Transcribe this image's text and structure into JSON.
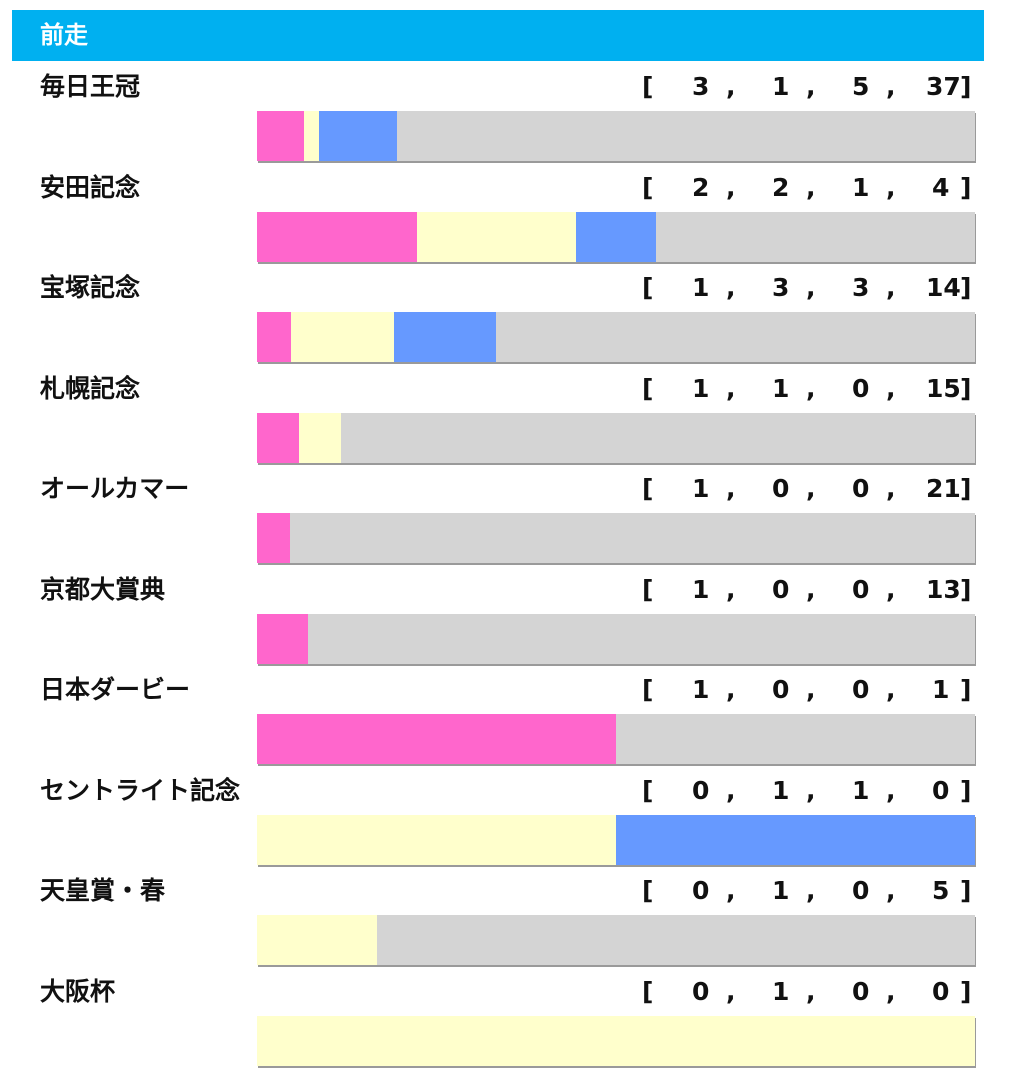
{
  "header": {
    "title": "前走"
  },
  "colors": {
    "first": "#ff66cc",
    "second": "#ffffcc",
    "third": "#6699ff",
    "other": "#d4d4d4",
    "header_bg": "#00b0f0"
  },
  "chart_data": {
    "type": "bar",
    "orientation": "horizontal",
    "stacked": true,
    "normalized": true,
    "categories": [
      "毎日王冠",
      "安田記念",
      "宝塚記念",
      "札幌記念",
      "オールカマー",
      "京都大賞典",
      "日本ダービー",
      "セントライト記念",
      "天皇賞・春",
      "大阪杯"
    ],
    "series": [
      {
        "values": [
          3,
          2,
          1,
          1,
          1,
          1,
          1,
          0,
          0,
          0
        ]
      },
      {
        "values": [
          1,
          2,
          3,
          1,
          0,
          0,
          0,
          1,
          1,
          1
        ]
      },
      {
        "values": [
          5,
          1,
          3,
          0,
          0,
          0,
          0,
          1,
          0,
          0
        ]
      },
      {
        "values": [
          37,
          4,
          14,
          15,
          21,
          13,
          1,
          0,
          5,
          0
        ]
      }
    ],
    "grid": true
  }
}
